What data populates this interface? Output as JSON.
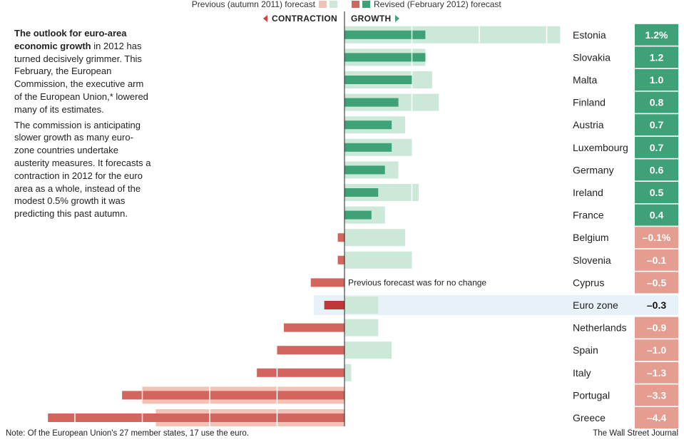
{
  "legend": {
    "previous_label": "Previous (autumn 2011) forecast",
    "revised_label": "Revised (February 2012) forecast"
  },
  "direction": {
    "contraction": "CONTRACTION",
    "growth": "GROWTH"
  },
  "intro": {
    "bold": "The outlook for euro-area economic growth",
    "p1_rest": " in 2012 has turned decisively grimmer. This February, the European Commission, the executive arm of the European Union,* lowered many of its estimates.",
    "p2": "The commission is anticipating slower growth as many euro-zone countries undertake austerity measures. It forecasts a contraction in 2012 for the euro area as a whole, instead of the modest 0.5% growth it was predicting this past autumn."
  },
  "footer": {
    "note": "Note: Of the European Union's 27 member states, 17 use the euro.",
    "source": "The Wall Street Journal"
  },
  "colors": {
    "growth_revised": "#3ea178",
    "growth_previous": "#cbe8d9",
    "contraction_revised": "#d2665f",
    "contraction_previous": "#f3c2b7",
    "label_positive": "#3ea178",
    "label_negative": "#e59c91",
    "highlight_band": "#e6f1f8",
    "euro_zone_bar": "#c0373a"
  },
  "chart_data": {
    "type": "bar",
    "orientation": "horizontal",
    "unit": "%",
    "categories": [
      "Estonia",
      "Slovakia",
      "Malta",
      "Finland",
      "Austria",
      "Luxembourg",
      "Germany",
      "Ireland",
      "France",
      "Belgium",
      "Slovenia",
      "Cyprus",
      "Euro zone",
      "Netherlands",
      "Spain",
      "Italy",
      "Portugal",
      "Greece"
    ],
    "series": [
      {
        "name": "Previous (autumn 2011) forecast",
        "values": [
          3.2,
          1.2,
          1.3,
          1.4,
          0.9,
          1.0,
          0.8,
          1.1,
          0.6,
          0.9,
          1.0,
          0.0,
          0.5,
          0.5,
          0.7,
          0.1,
          -3.0,
          -2.8
        ]
      },
      {
        "name": "Revised (February 2012) forecast",
        "values": [
          1.2,
          1.2,
          1.0,
          0.8,
          0.7,
          0.7,
          0.6,
          0.5,
          0.4,
          -0.1,
          -0.1,
          -0.5,
          -0.3,
          -0.9,
          -1.0,
          -1.3,
          -3.3,
          -4.4
        ]
      }
    ],
    "value_labels": [
      "1.2%",
      "1.2",
      "1.0",
      "0.8",
      "0.7",
      "0.7",
      "0.6",
      "0.5",
      "0.4",
      "–0.1%",
      "–0.1",
      "–0.5",
      "–0.3",
      "–0.9",
      "–1.0",
      "–1.3",
      "–3.3",
      "–4.4"
    ],
    "highlight": "Euro zone",
    "annotation": {
      "category": "Cyprus",
      "text": "Previous forecast was for no change"
    },
    "xlim": [
      -4.4,
      3.2
    ],
    "grid": false
  }
}
